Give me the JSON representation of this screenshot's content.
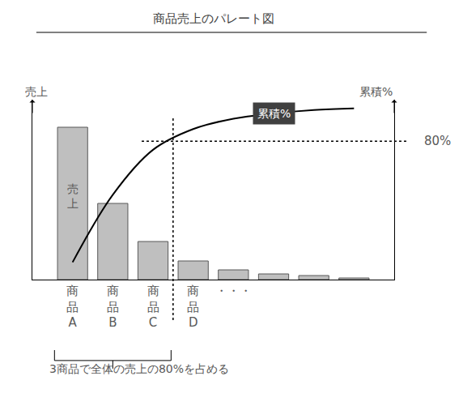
{
  "chart_data": {
    "type": "bar",
    "title": "商品売上のパレート図",
    "y_label": "売上",
    "y2_label": "累積%",
    "categories": [
      "商品A",
      "商品B",
      "商品C",
      "商品D",
      "・・・",
      null,
      null,
      null
    ],
    "series": [
      {
        "name": "売上",
        "type": "bar",
        "color": "#bfbfbf",
        "values": [
          188,
          94,
          47,
          23,
          12,
          7,
          5,
          2
        ]
      },
      {
        "name": "累積%",
        "type": "line",
        "color": "#000000",
        "axis": "y2",
        "values": [
          10,
          49,
          75,
          87,
          93,
          96,
          98,
          99
        ]
      }
    ],
    "ylim": [
      0,
      222
    ],
    "yticks": [],
    "y2lim": [
      0,
      104
    ],
    "y2ticks": [
      {
        "value": 80,
        "label": "80%"
      }
    ],
    "annotation": "3商品で全体の売上の80%を占める"
  }
}
